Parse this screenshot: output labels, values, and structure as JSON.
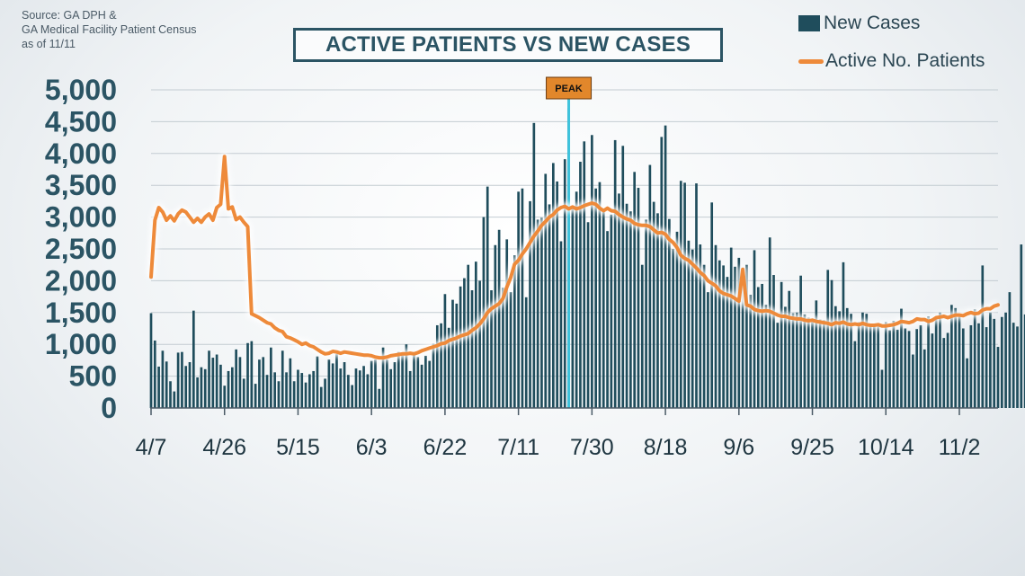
{
  "source": {
    "line1": "Source: GA DPH &",
    "line2": "GA Medical Facility Patient Census",
    "line3": "as of 11/11"
  },
  "title": "ACTIVE PATIENTS VS NEW CASES",
  "legend": {
    "bars_label": "New Cases",
    "line_label": "Active No. Patients"
  },
  "colors": {
    "bars": "#1f4d5c",
    "line": "#ee8a3a",
    "peak_line": "#3fc3dc",
    "peak_label_bg": "#e2872b"
  },
  "chart_data": {
    "type": "bar",
    "title": "ACTIVE PATIENTS VS NEW CASES",
    "ylim": [
      0,
      5000
    ],
    "y_ticks": [
      "0",
      "500",
      "1,000",
      "1,500",
      "2,000",
      "2,500",
      "3,000",
      "3,500",
      "4,000",
      "4,500",
      "5,000"
    ],
    "y_tick_values": [
      0,
      500,
      1000,
      1500,
      2000,
      2500,
      3000,
      3500,
      4000,
      4500,
      5000
    ],
    "x_ticks": [
      "4/7",
      "4/26",
      "5/15",
      "6/3",
      "6/22",
      "7/11",
      "7/30",
      "8/18",
      "9/6",
      "9/25",
      "10/14",
      "11/2"
    ],
    "x_tick_days": [
      0,
      19,
      38,
      57,
      76,
      95,
      114,
      133,
      152,
      171,
      190,
      209
    ],
    "x_unit": "days since 4/7",
    "grid": true,
    "legend_position": "top-right",
    "annotations": [
      {
        "label": "PEAK",
        "x_day": 108
      }
    ],
    "series": [
      {
        "name": "New Cases",
        "type": "bar",
        "values": [
          1490,
          1060,
          650,
          900,
          730,
          420,
          260,
          870,
          880,
          660,
          720,
          1530,
          480,
          640,
          610,
          900,
          790,
          840,
          680,
          350,
          580,
          640,
          920,
          800,
          460,
          1020,
          1050,
          380,
          760,
          800,
          520,
          950,
          560,
          420,
          900,
          560,
          780,
          420,
          600,
          550,
          400,
          530,
          580,
          810,
          330,
          460,
          760,
          700,
          850,
          620,
          720,
          520,
          360,
          620,
          590,
          660,
          530,
          740,
          760,
          300,
          950,
          760,
          610,
          720,
          880,
          860,
          1000,
          580,
          880,
          800,
          680,
          820,
          740,
          1010,
          1300,
          1330,
          1790,
          1260,
          1700,
          1640,
          1910,
          2040,
          2250,
          1850,
          2300,
          2000,
          3000,
          3480,
          1850,
          2560,
          2800,
          1890,
          2650,
          1820,
          2400,
          3400,
          3450,
          1740,
          3250,
          4480,
          2960,
          2990,
          3680,
          3200,
          3850,
          3560,
          2620,
          3910,
          4710,
          3160,
          3400,
          3870,
          4190,
          2920,
          4290,
          3450,
          3550,
          3120,
          2780,
          3040,
          4210,
          3370,
          4120,
          3210,
          3090,
          3710,
          3460,
          2250,
          2960,
          3820,
          3240,
          3060,
          4260,
          4440,
          2970,
          2500,
          2770,
          3570,
          3540,
          2630,
          2490,
          3530,
          2570,
          2250,
          1820,
          3230,
          2560,
          2320,
          2240,
          2060,
          2520,
          2220,
          2360,
          1920,
          2250,
          1780,
          2480,
          1900,
          1950,
          1620,
          2680,
          2090,
          1340,
          1980,
          1590,
          1840,
          1490,
          1500,
          2080,
          1470,
          1420,
          1390,
          1690,
          1390,
          1380,
          2170,
          2010,
          1600,
          1520,
          2290,
          1570,
          1480,
          1050,
          1350,
          1500,
          1480,
          1300,
          1300,
          1300,
          600,
          1350,
          1220,
          1370,
          1230,
          1560,
          1250,
          1210,
          840,
          1240,
          1300,
          920,
          1440,
          1170,
          1420,
          1500,
          1100,
          1180,
          1620,
          1570,
          1470,
          1250,
          780,
          1300,
          1550,
          1330,
          2240,
          1270,
          1500,
          1400,
          960,
          1430,
          1500,
          1820,
          1340,
          1280,
          2570,
          1470,
          1380,
          1720,
          1450,
          1470,
          1720,
          1460,
          1860,
          1710,
          1750,
          1080,
          1700,
          1460,
          1850,
          1530,
          1100
        ]
      },
      {
        "name": "Active No. Patients",
        "type": "line",
        "points": [
          [
            0,
            2060
          ],
          [
            1,
            2950
          ],
          [
            2,
            3150
          ],
          [
            3,
            3080
          ],
          [
            4,
            2950
          ],
          [
            5,
            3020
          ],
          [
            6,
            2940
          ],
          [
            7,
            3050
          ],
          [
            8,
            3110
          ],
          [
            9,
            3080
          ],
          [
            10,
            3000
          ],
          [
            11,
            2920
          ],
          [
            12,
            2980
          ],
          [
            13,
            2920
          ],
          [
            14,
            3000
          ],
          [
            15,
            3050
          ],
          [
            16,
            2950
          ],
          [
            17,
            3150
          ],
          [
            18,
            3200
          ],
          [
            19,
            3950
          ],
          [
            20,
            3130
          ],
          [
            21,
            3160
          ],
          [
            22,
            2960
          ],
          [
            23,
            3000
          ],
          [
            24,
            2920
          ],
          [
            25,
            2850
          ],
          [
            26,
            1480
          ],
          [
            27,
            1450
          ],
          [
            28,
            1420
          ],
          [
            29,
            1380
          ],
          [
            30,
            1340
          ],
          [
            31,
            1320
          ],
          [
            32,
            1260
          ],
          [
            33,
            1220
          ],
          [
            34,
            1200
          ],
          [
            35,
            1120
          ],
          [
            36,
            1100
          ],
          [
            37,
            1070
          ],
          [
            38,
            1040
          ],
          [
            39,
            1000
          ],
          [
            40,
            1020
          ],
          [
            41,
            980
          ],
          [
            42,
            960
          ],
          [
            43,
            920
          ],
          [
            44,
            880
          ],
          [
            45,
            850
          ],
          [
            46,
            860
          ],
          [
            47,
            890
          ],
          [
            48,
            880
          ],
          [
            49,
            860
          ],
          [
            50,
            880
          ],
          [
            51,
            870
          ],
          [
            52,
            860
          ],
          [
            53,
            850
          ],
          [
            54,
            840
          ],
          [
            55,
            830
          ],
          [
            56,
            830
          ],
          [
            57,
            820
          ],
          [
            58,
            800
          ],
          [
            59,
            790
          ],
          [
            60,
            790
          ],
          [
            61,
            800
          ],
          [
            62,
            820
          ],
          [
            63,
            830
          ],
          [
            64,
            840
          ],
          [
            65,
            850
          ],
          [
            66,
            850
          ],
          [
            67,
            860
          ],
          [
            68,
            850
          ],
          [
            69,
            870
          ],
          [
            70,
            900
          ],
          [
            71,
            920
          ],
          [
            72,
            940
          ],
          [
            73,
            960
          ],
          [
            74,
            980
          ],
          [
            75,
            1010
          ],
          [
            76,
            1020
          ],
          [
            77,
            1060
          ],
          [
            78,
            1080
          ],
          [
            79,
            1100
          ],
          [
            80,
            1130
          ],
          [
            81,
            1150
          ],
          [
            82,
            1170
          ],
          [
            83,
            1220
          ],
          [
            84,
            1260
          ],
          [
            85,
            1320
          ],
          [
            86,
            1400
          ],
          [
            87,
            1500
          ],
          [
            88,
            1560
          ],
          [
            89,
            1600
          ],
          [
            90,
            1640
          ],
          [
            91,
            1720
          ],
          [
            92,
            1900
          ],
          [
            93,
            2050
          ],
          [
            94,
            2260
          ],
          [
            95,
            2320
          ],
          [
            96,
            2420
          ],
          [
            97,
            2500
          ],
          [
            98,
            2600
          ],
          [
            99,
            2700
          ],
          [
            100,
            2780
          ],
          [
            101,
            2870
          ],
          [
            102,
            2930
          ],
          [
            103,
            3000
          ],
          [
            104,
            3040
          ],
          [
            105,
            3110
          ],
          [
            106,
            3150
          ],
          [
            107,
            3170
          ],
          [
            108,
            3130
          ],
          [
            109,
            3160
          ],
          [
            110,
            3130
          ],
          [
            111,
            3150
          ],
          [
            112,
            3180
          ],
          [
            113,
            3200
          ],
          [
            114,
            3220
          ],
          [
            115,
            3200
          ],
          [
            116,
            3140
          ],
          [
            117,
            3100
          ],
          [
            118,
            3140
          ],
          [
            119,
            3100
          ],
          [
            120,
            3090
          ],
          [
            121,
            3040
          ],
          [
            122,
            3000
          ],
          [
            123,
            2970
          ],
          [
            124,
            2950
          ],
          [
            125,
            2900
          ],
          [
            126,
            2880
          ],
          [
            127,
            2870
          ],
          [
            128,
            2870
          ],
          [
            129,
            2850
          ],
          [
            130,
            2800
          ],
          [
            131,
            2750
          ],
          [
            132,
            2760
          ],
          [
            133,
            2730
          ],
          [
            134,
            2650
          ],
          [
            135,
            2600
          ],
          [
            136,
            2520
          ],
          [
            137,
            2400
          ],
          [
            138,
            2350
          ],
          [
            139,
            2320
          ],
          [
            140,
            2260
          ],
          [
            141,
            2200
          ],
          [
            142,
            2130
          ],
          [
            143,
            2080
          ],
          [
            144,
            2000
          ],
          [
            145,
            1960
          ],
          [
            146,
            1920
          ],
          [
            147,
            1840
          ],
          [
            148,
            1800
          ],
          [
            149,
            1780
          ],
          [
            150,
            1760
          ],
          [
            151,
            1720
          ],
          [
            152,
            1680
          ],
          [
            153,
            2180
          ],
          [
            154,
            1620
          ],
          [
            155,
            1600
          ],
          [
            156,
            1550
          ],
          [
            157,
            1530
          ],
          [
            158,
            1520
          ],
          [
            159,
            1530
          ],
          [
            160,
            1520
          ],
          [
            161,
            1490
          ],
          [
            162,
            1460
          ],
          [
            163,
            1440
          ],
          [
            164,
            1440
          ],
          [
            165,
            1420
          ],
          [
            166,
            1410
          ],
          [
            167,
            1400
          ],
          [
            168,
            1400
          ],
          [
            169,
            1380
          ],
          [
            170,
            1370
          ],
          [
            171,
            1380
          ],
          [
            172,
            1360
          ],
          [
            173,
            1350
          ],
          [
            174,
            1340
          ],
          [
            175,
            1330
          ],
          [
            176,
            1310
          ],
          [
            177,
            1340
          ],
          [
            178,
            1330
          ],
          [
            179,
            1350
          ],
          [
            180,
            1320
          ],
          [
            181,
            1310
          ],
          [
            182,
            1320
          ],
          [
            183,
            1310
          ],
          [
            184,
            1330
          ],
          [
            185,
            1310
          ],
          [
            186,
            1300
          ],
          [
            187,
            1300
          ],
          [
            188,
            1310
          ],
          [
            189,
            1290
          ],
          [
            190,
            1290
          ],
          [
            191,
            1300
          ],
          [
            192,
            1310
          ],
          [
            193,
            1330
          ],
          [
            194,
            1360
          ],
          [
            195,
            1350
          ],
          [
            196,
            1340
          ],
          [
            197,
            1360
          ],
          [
            198,
            1400
          ],
          [
            199,
            1390
          ],
          [
            200,
            1390
          ],
          [
            201,
            1360
          ],
          [
            202,
            1380
          ],
          [
            203,
            1420
          ],
          [
            204,
            1430
          ],
          [
            205,
            1440
          ],
          [
            206,
            1420
          ],
          [
            207,
            1440
          ],
          [
            208,
            1460
          ],
          [
            209,
            1460
          ],
          [
            210,
            1450
          ],
          [
            211,
            1480
          ],
          [
            212,
            1500
          ],
          [
            213,
            1480
          ],
          [
            214,
            1490
          ],
          [
            215,
            1540
          ],
          [
            216,
            1560
          ],
          [
            217,
            1560
          ],
          [
            218,
            1600
          ],
          [
            219,
            1620
          ]
        ]
      }
    ]
  }
}
